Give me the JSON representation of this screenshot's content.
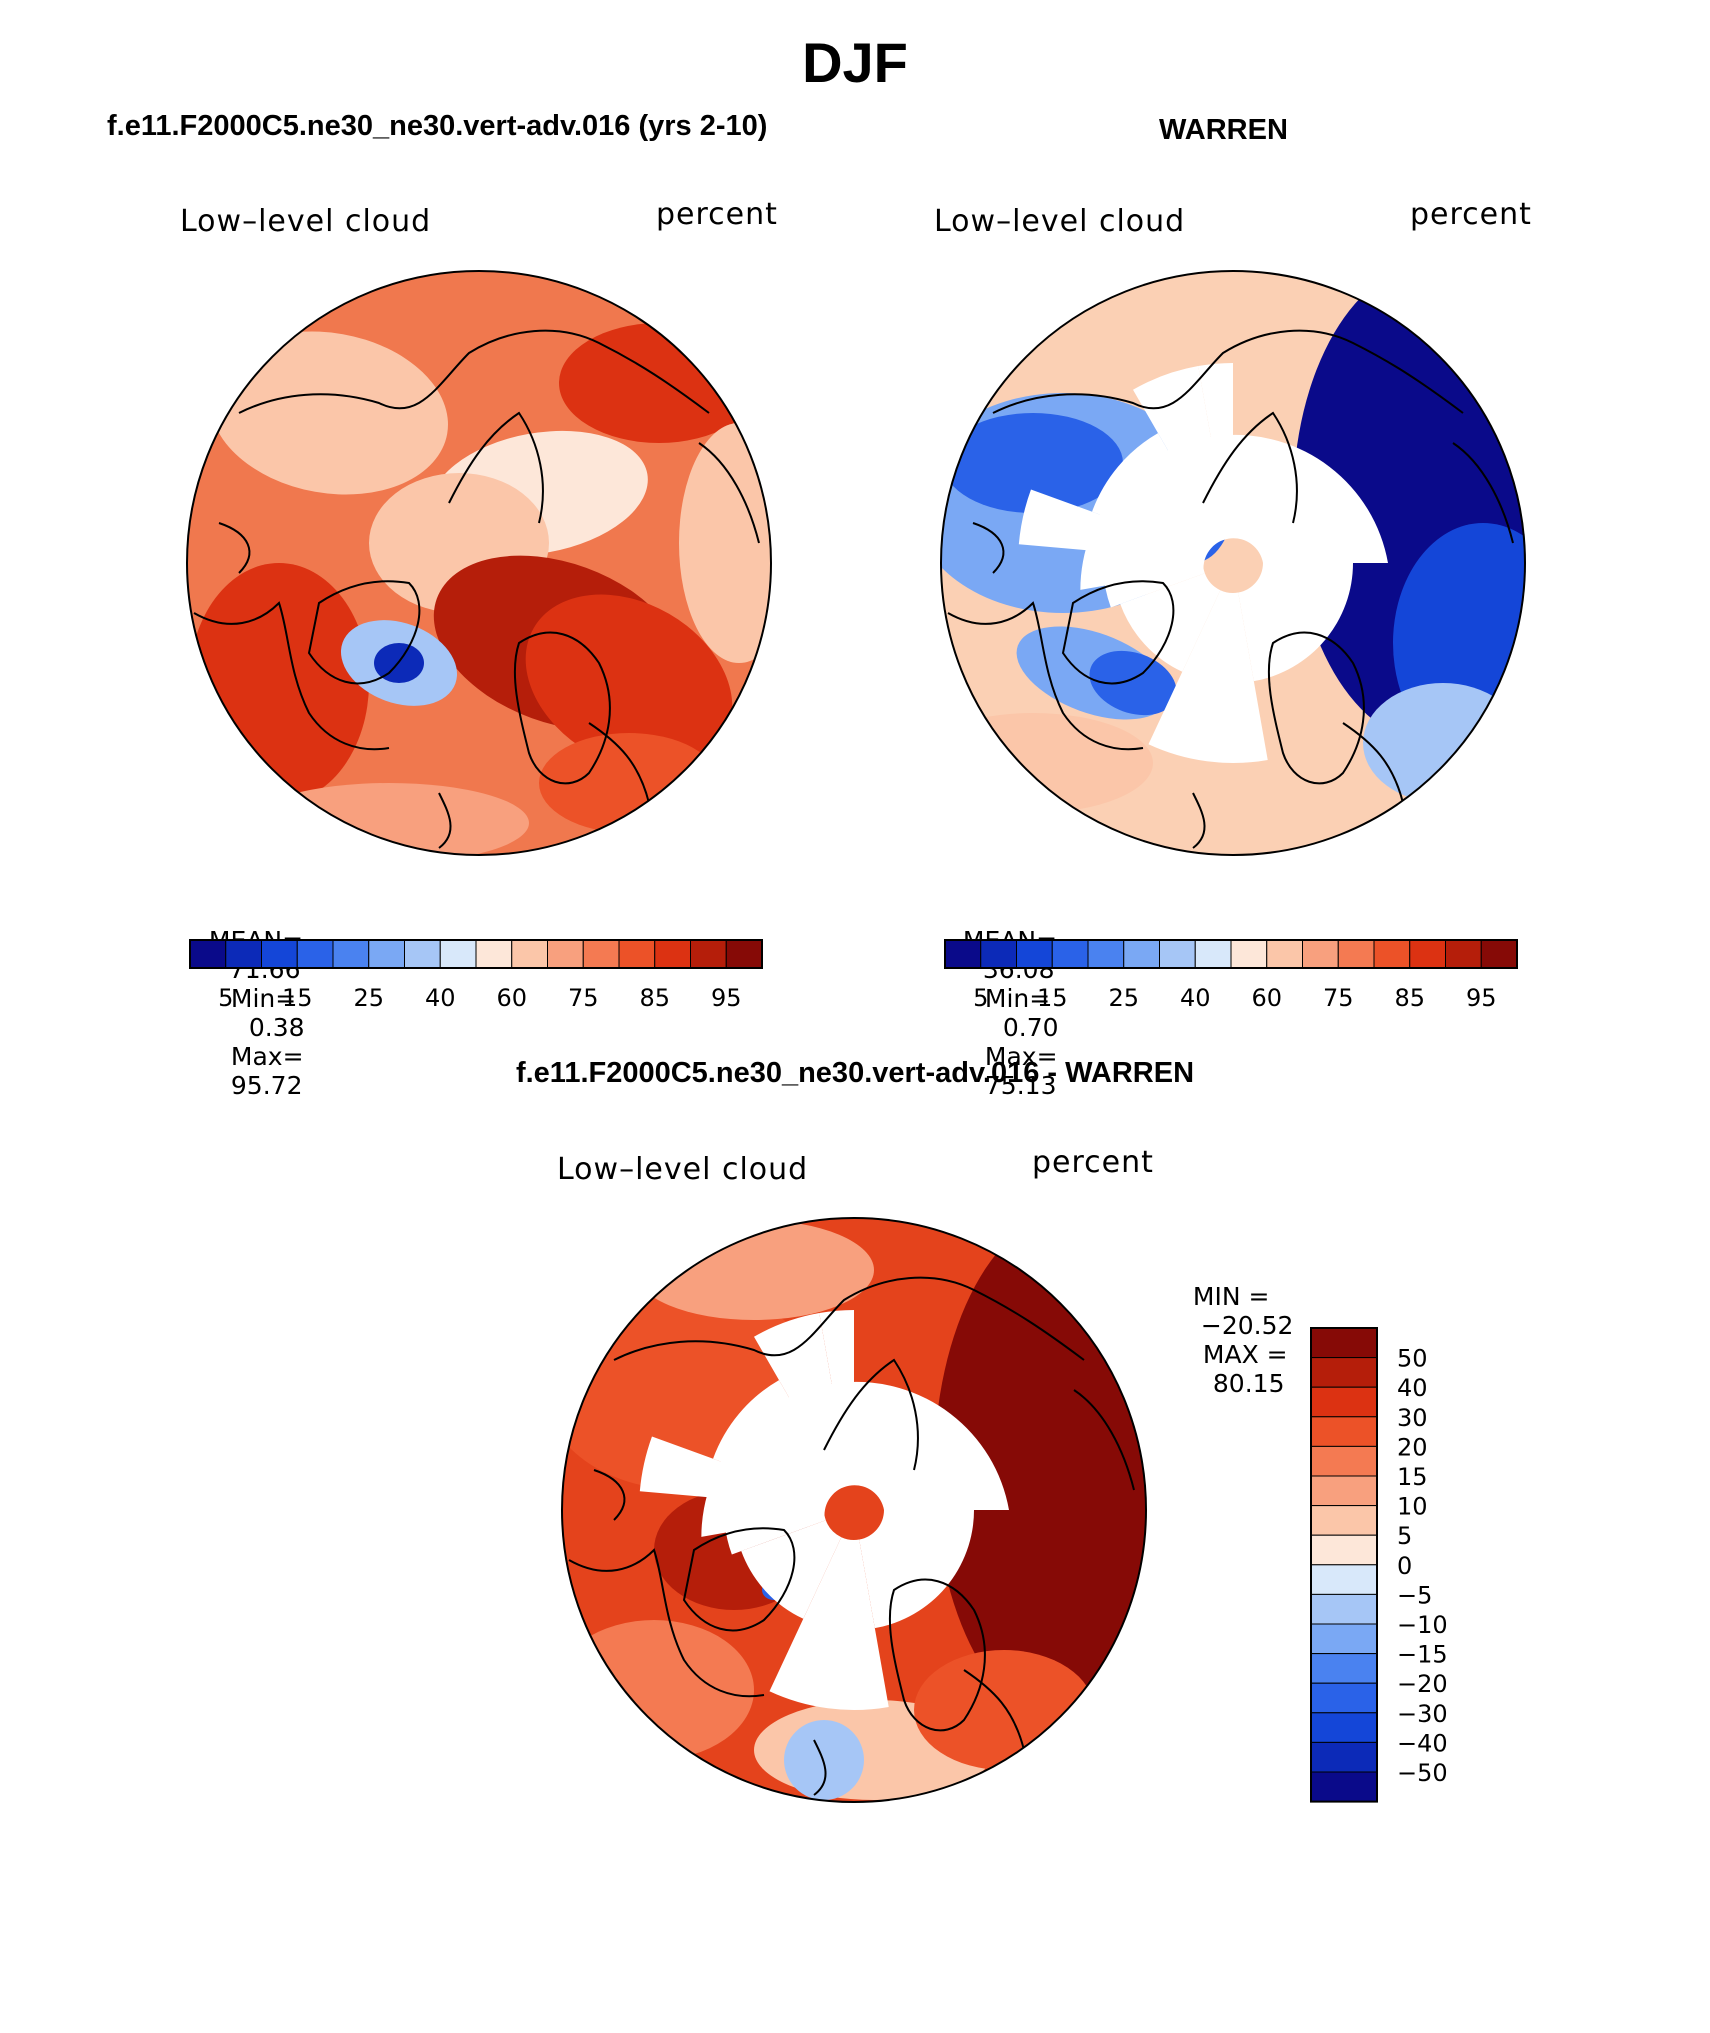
{
  "figure": {
    "title": "DJF"
  },
  "panels": {
    "model": {
      "title": "f.e11.F2000C5.ne30_ne30.vert-adv.016 (yrs 2-10)",
      "variable": "Low–level cloud",
      "units": "percent",
      "stats": {
        "mean_label": "MEAN=",
        "mean": "71.66",
        "min_label": "Min=",
        "min": "0.38",
        "max_label": "Max=",
        "max": "95.72"
      }
    },
    "obs": {
      "title": "WARREN",
      "variable": "Low–level cloud",
      "units": "percent",
      "stats": {
        "mean_label": "MEAN=",
        "mean": "36.08",
        "min_label": "Min=",
        "min": "0.70",
        "max_label": "Max=",
        "max": "75.13"
      }
    },
    "diff": {
      "title": "f.e11.F2000C5.ne30_ne30.vert-adv.016 - WARREN",
      "variable": "Low–level cloud",
      "units": "percent",
      "stats": {
        "min_label": "MIN =",
        "min": "−20.52",
        "max_label": "MAX =",
        "max": "80.15"
      }
    }
  },
  "colorbars": {
    "absolute": {
      "colors": [
        "#0a0a8a",
        "#0c2ab8",
        "#1446d8",
        "#2a62e8",
        "#4a82f0",
        "#7aa8f4",
        "#a6c6f6",
        "#d8e8fa",
        "#fde7d9",
        "#fbc6a9",
        "#f8a07e",
        "#f47a52",
        "#ec5228",
        "#dc3212",
        "#b51e0a",
        "#860a06"
      ],
      "tick_labels": [
        "5",
        "15",
        "25",
        "40",
        "60",
        "75",
        "85",
        "95"
      ]
    },
    "difference": {
      "colors": [
        "#860a06",
        "#b51e0a",
        "#dc3212",
        "#ec5228",
        "#f47a52",
        "#f8a07e",
        "#fbc6a9",
        "#fde7d9",
        "#d8e8fa",
        "#a6c6f6",
        "#7aa8f4",
        "#4a82f0",
        "#2a62e8",
        "#1446d8",
        "#0c2ab8",
        "#0a0a8a"
      ],
      "tick_labels": [
        "50",
        "40",
        "30",
        "20",
        "15",
        "10",
        "5",
        "0",
        "−5",
        "−10",
        "−15",
        "−20",
        "−30",
        "−40",
        "−50"
      ]
    }
  },
  "map_colors": {
    "model_base": "#f0784e",
    "obs_base": "#fbd0b4",
    "diff_base": "#e4431c",
    "coastline": "#000000",
    "missing": "#ffffff"
  }
}
